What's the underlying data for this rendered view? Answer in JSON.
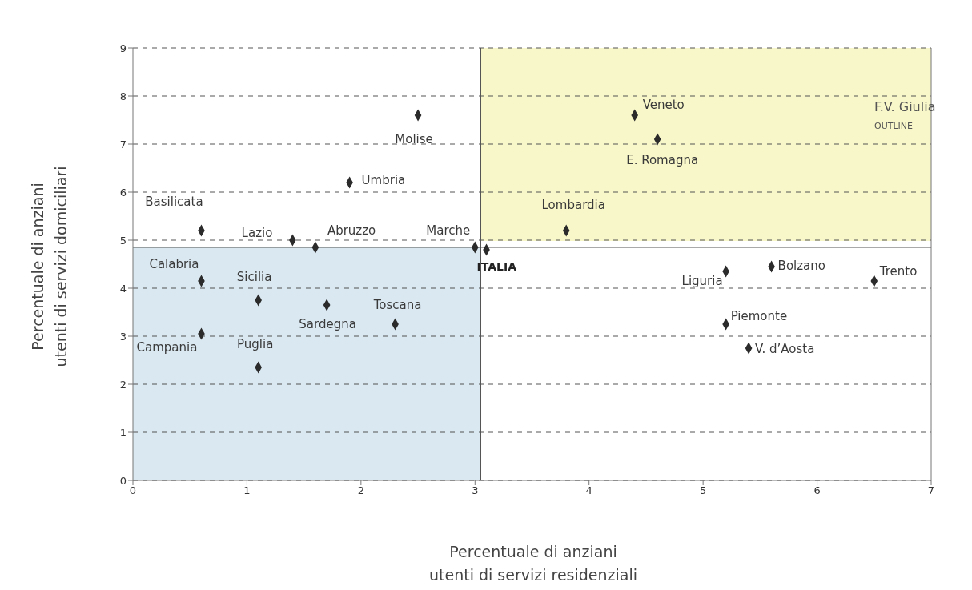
{
  "chart_data": {
    "type": "scatter",
    "xlabel": "Percentuale di anziani\nutenti di servizi residenziali",
    "ylabel": "Percentuale di anziani\nutenti di servizi domiciliari",
    "x": [
      2.5,
      1.9,
      0.6,
      1.4,
      1.6,
      3.0,
      3.1,
      4.4,
      4.6,
      3.8,
      5.2,
      5.6,
      6.5,
      5.2,
      5.4,
      0.6,
      1.1,
      1.7,
      2.3,
      0.6,
      1.1
    ],
    "values": [
      7.6,
      6.2,
      5.2,
      5.0,
      4.85,
      4.85,
      4.8,
      7.6,
      7.1,
      5.2,
      4.35,
      4.45,
      4.15,
      3.25,
      2.75,
      4.15,
      3.75,
      3.65,
      3.25,
      3.05,
      2.35
    ],
    "color": "#2b2b2b",
    "marker": "diamond",
    "xlim": [
      0,
      7
    ],
    "ylim": [
      0,
      9
    ],
    "xticks": [
      0,
      1,
      2,
      3,
      4,
      5,
      6,
      7
    ],
    "yticks": [
      0,
      1,
      2,
      3,
      4,
      5,
      6,
      7,
      8,
      9
    ],
    "grid": "y",
    "ref_lines": [
      {
        "axis": "x",
        "value": 3.05,
        "color": "#555555"
      },
      {
        "axis": "y",
        "value": 4.85,
        "color": "#555555"
      }
    ],
    "annotations": [
      {
        "text": "Molise",
        "x": 2.5,
        "y": 7.6
      },
      {
        "text": "Umbria",
        "x": 1.9,
        "y": 6.2
      },
      {
        "text": "Basilicata",
        "x": 0.6,
        "y": 5.2
      },
      {
        "text": "Lazio",
        "x": 1.4,
        "y": 5.0
      },
      {
        "text": "Abruzzo",
        "x": 1.6,
        "y": 4.85
      },
      {
        "text": "Marche",
        "x": 3.0,
        "y": 4.85
      },
      {
        "text": "ITALIA",
        "x": 3.1,
        "y": 4.8
      },
      {
        "text": "Veneto",
        "x": 4.4,
        "y": 7.6
      },
      {
        "text": "E. Romagna",
        "x": 4.6,
        "y": 7.1
      },
      {
        "text": "Lombardia",
        "x": 3.8,
        "y": 5.2
      },
      {
        "text": "Liguria",
        "x": 5.2,
        "y": 4.35
      },
      {
        "text": "Bolzano",
        "x": 5.6,
        "y": 4.45
      },
      {
        "text": "Trento",
        "x": 6.5,
        "y": 4.15
      },
      {
        "text": "Piemonte",
        "x": 5.2,
        "y": 3.25
      },
      {
        "text": "V. d’Aosta",
        "x": 5.4,
        "y": 2.75
      },
      {
        "text": "Calabria",
        "x": 0.6,
        "y": 4.15
      },
      {
        "text": "Sicilia",
        "x": 1.1,
        "y": 3.75
      },
      {
        "text": "Sardegna",
        "x": 1.7,
        "y": 3.65
      },
      {
        "text": "Toscana",
        "x": 2.3,
        "y": 3.25
      },
      {
        "text": "Campania",
        "x": 0.6,
        "y": 3.05
      },
      {
        "text": "Puglia",
        "x": 1.1,
        "y": 2.35
      },
      "F.V. Giulia",
      "OUTLINE"
    ]
  }
}
